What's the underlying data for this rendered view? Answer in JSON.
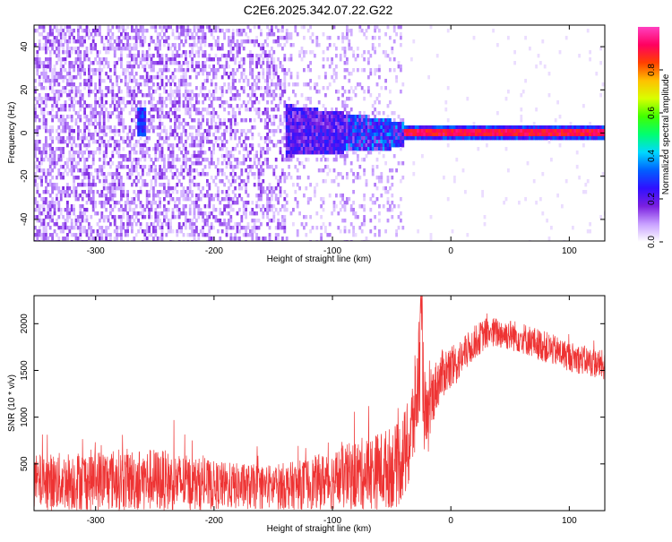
{
  "title": "C2E6.2025.342.07.22.G22",
  "colorbar": {
    "label": "Normalized spectral amplitude",
    "ticks": [
      "0.0",
      "0.2",
      "0.4",
      "0.6",
      "0.8"
    ],
    "tick_values": [
      0.0,
      0.2,
      0.4,
      0.6,
      0.8
    ],
    "range": [
      0,
      1
    ],
    "colors": [
      "#ffffff",
      "#c8a0ff",
      "#7a1fe0",
      "#3010ff",
      "#0060ff",
      "#00d8ff",
      "#00ff70",
      "#40ff00",
      "#d8ff00",
      "#ffc000",
      "#ff4000",
      "#ff0060",
      "#ff40c0"
    ]
  },
  "chart_data": [
    {
      "type": "heatmap",
      "title": "",
      "xlabel": "Height of straight line (km)",
      "ylabel": "Frequency (Hz)",
      "xlim": [
        -352,
        130
      ],
      "ylim": [
        -50,
        50
      ],
      "x_ticks": [
        -300,
        -200,
        -100,
        0,
        100
      ],
      "x_tick_labels": [
        "-300",
        "-200",
        "-100",
        "0",
        "100"
      ],
      "y_ticks": [
        -40,
        -20,
        0,
        20,
        40
      ],
      "y_tick_labels": [
        "-40",
        "-20",
        "0",
        "20",
        "40"
      ],
      "description_values": {
        "noise_region_x": [
          -352,
          -140
        ],
        "transition_region_x": [
          -140,
          -40
        ],
        "carrier_region_x": [
          -40,
          130
        ],
        "carrier_frequency_hz": 1.5,
        "carrier_amplitude": 0.95
      }
    },
    {
      "type": "line",
      "title": "",
      "xlabel": "Height of straight line (km)",
      "ylabel": "SNR (10 * v/v)",
      "xlim": [
        -352,
        130
      ],
      "ylim": [
        0,
        2300
      ],
      "x_ticks": [
        -300,
        -200,
        -100,
        0,
        100
      ],
      "x_tick_labels": [
        "-300",
        "-200",
        "-100",
        "0",
        "100"
      ],
      "y_ticks": [
        500,
        1000,
        1500,
        2000
      ],
      "y_tick_labels": [
        "500",
        "1000",
        "1500",
        "2000"
      ],
      "series": [
        {
          "color": "#ee3333",
          "x": [
            -352,
            -300,
            -250,
            -200,
            -160,
            -130,
            -100,
            -80,
            -60,
            -45,
            -35,
            -28,
            -25,
            -22,
            -20,
            -15,
            -10,
            -5,
            0,
            10,
            20,
            30,
            40,
            50,
            60,
            80,
            100,
            130
          ],
          "y": [
            300,
            330,
            330,
            270,
            250,
            270,
            330,
            380,
            430,
            480,
            700,
            1300,
            2000,
            1000,
            900,
            1250,
            1400,
            1500,
            1500,
            1650,
            1800,
            1900,
            1900,
            1880,
            1850,
            1750,
            1650,
            1550
          ],
          "spread": [
            300,
            330,
            340,
            260,
            240,
            260,
            320,
            380,
            420,
            450,
            500,
            600,
            700,
            500,
            400,
            300,
            280,
            260,
            250,
            200,
            180,
            170,
            170,
            170,
            170,
            170,
            160,
            160
          ]
        }
      ]
    }
  ]
}
